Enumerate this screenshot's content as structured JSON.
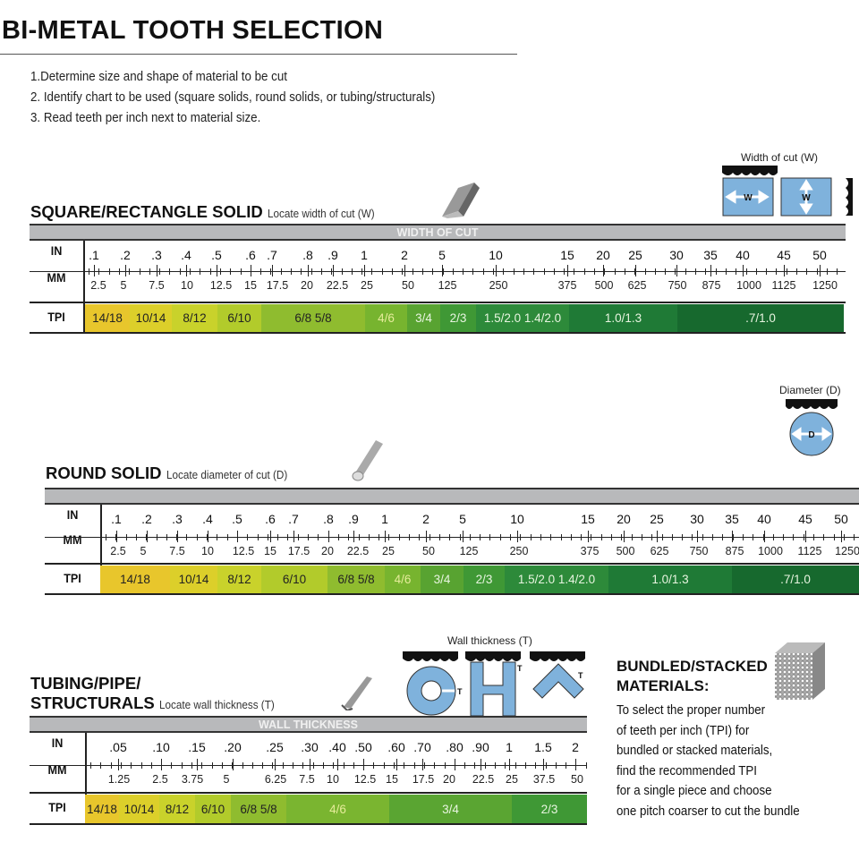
{
  "title": "BI-METAL TOOTH SELECTION",
  "steps": [
    "1.Determine size and shape of material to be cut",
    "2. Identify chart to be used (square solids, round solids, or tubing/structurals)",
    "3. Read teeth per inch next to material size."
  ],
  "row_labels": {
    "in": "IN",
    "mm": "MM",
    "tpi": "TPI"
  },
  "square": {
    "title": "SQUARE/RECTANGLE SOLID",
    "hint": "Locate width of cut (W)",
    "header": "WIDTH OF CUT",
    "diagram_caption": "Width of cut (W)",
    "diagram_letter": "W",
    "in": [
      ".1",
      ".2",
      ".3",
      ".4",
      ".5",
      ".6",
      ".7",
      ".8",
      ".9",
      "1",
      "2",
      "5",
      "10",
      "15",
      "20",
      "25",
      "30",
      "35",
      "40",
      "45",
      "50"
    ],
    "mm": [
      "2.5",
      "5",
      "7.5",
      "10",
      "12.5",
      "15",
      "17.5",
      "20",
      "22.5",
      "25",
      "50",
      "125",
      "250",
      "375",
      "500",
      "625",
      "750",
      "875",
      "1000",
      "1125",
      "1250"
    ],
    "tpi": [
      {
        "label": "14/18",
        "color": "#e8c62c"
      },
      {
        "label": "10/14",
        "color": "#dccf2a"
      },
      {
        "label": "8/12",
        "color": "#c9d22b"
      },
      {
        "label": "6/10",
        "color": "#b2cb2b"
      },
      {
        "label": "6/8 5/8",
        "color": "#8fbc2f"
      },
      {
        "label": "4/6",
        "color": "#77b42f"
      },
      {
        "label": "3/4",
        "color": "#58a331"
      },
      {
        "label": "2/3",
        "color": "#3f9835"
      },
      {
        "label": "1.5/2.0 1.4/2.0",
        "color": "#2d8a3a"
      },
      {
        "label": "1.0/1.3",
        "color": "#1f7a36"
      },
      {
        "label": ".7/1.0",
        "color": "#17692e"
      }
    ]
  },
  "round": {
    "title": "ROUND SOLID",
    "hint": "Locate diameter of cut (D)",
    "header": "",
    "diagram_caption": "Diameter (D)",
    "diagram_letter": "D",
    "in": [
      ".1",
      ".2",
      ".3",
      ".4",
      ".5",
      ".6",
      ".7",
      ".8",
      ".9",
      "1",
      "2",
      "5",
      "10",
      "15",
      "20",
      "25",
      "30",
      "35",
      "40",
      "45",
      "50"
    ],
    "mm": [
      "2.5",
      "5",
      "7.5",
      "10",
      "12.5",
      "15",
      "17.5",
      "20",
      "22.5",
      "25",
      "50",
      "125",
      "250",
      "375",
      "500",
      "625",
      "750",
      "875",
      "1000",
      "1125",
      "1250"
    ],
    "tpi": [
      {
        "label": "14/18",
        "color": "#e8c62c"
      },
      {
        "label": "10/14",
        "color": "#dccf2a"
      },
      {
        "label": "8/12",
        "color": "#c9d22b"
      },
      {
        "label": "6/10",
        "color": "#b2cb2b"
      },
      {
        "label": "6/8 5/8",
        "color": "#8fbc2f"
      },
      {
        "label": "4/6",
        "color": "#77b42f"
      },
      {
        "label": "3/4",
        "color": "#58a331"
      },
      {
        "label": "2/3",
        "color": "#3f9835"
      },
      {
        "label": "1.5/2.0 1.4/2.0",
        "color": "#2d8a3a"
      },
      {
        "label": "1.0/1.3",
        "color": "#1f7a36"
      },
      {
        "label": ".7/1.0",
        "color": "#17692e"
      }
    ]
  },
  "tubing": {
    "title_line1": "TUBING/PIPE/",
    "title_line2": "STRUCTURALS",
    "hint": "Locate wall thickness (T)",
    "header": "WALL THICKNESS",
    "diagram_caption": "Wall thickness (T)",
    "diagram_letter": "T",
    "in": [
      ".05",
      ".10",
      ".15",
      ".20",
      ".25",
      ".30",
      ".40",
      ".50",
      ".60",
      ".70",
      ".80",
      ".90",
      "1",
      "1.5",
      "2"
    ],
    "mm": [
      "1.25",
      "2.5",
      "3.75",
      "5",
      "6.25",
      "7.5",
      "10",
      "12.5",
      "15",
      "17.5",
      "20",
      "22.5",
      "25",
      "37.5",
      "50"
    ],
    "tpi": [
      {
        "label": "14/18",
        "color": "#e8c62c"
      },
      {
        "label": "10/14",
        "color": "#dccf2a"
      },
      {
        "label": "8/12",
        "color": "#c9d22b"
      },
      {
        "label": "6/10",
        "color": "#b2cb2b"
      },
      {
        "label": "6/8 5/8",
        "color": "#8fbc2f"
      },
      {
        "label": "4/6",
        "color": "#7ab530"
      },
      {
        "label": "3/4",
        "color": "#5aa532"
      },
      {
        "label": "2/3",
        "color": "#3f9835"
      }
    ]
  },
  "bundled": {
    "title_line1": "BUNDLED/STACKED",
    "title_line2": "MATERIALS:",
    "lines": [
      "To select the proper number",
      "of teeth per inch (TPI) for",
      "bundled or stacked materials,",
      "find the recommended TPI",
      "for a single piece and choose",
      "one pitch coarser to cut the bundle"
    ]
  },
  "colors": {
    "diagram_blue": "#7fb2dc",
    "header_gray": "#b8b9bb"
  }
}
